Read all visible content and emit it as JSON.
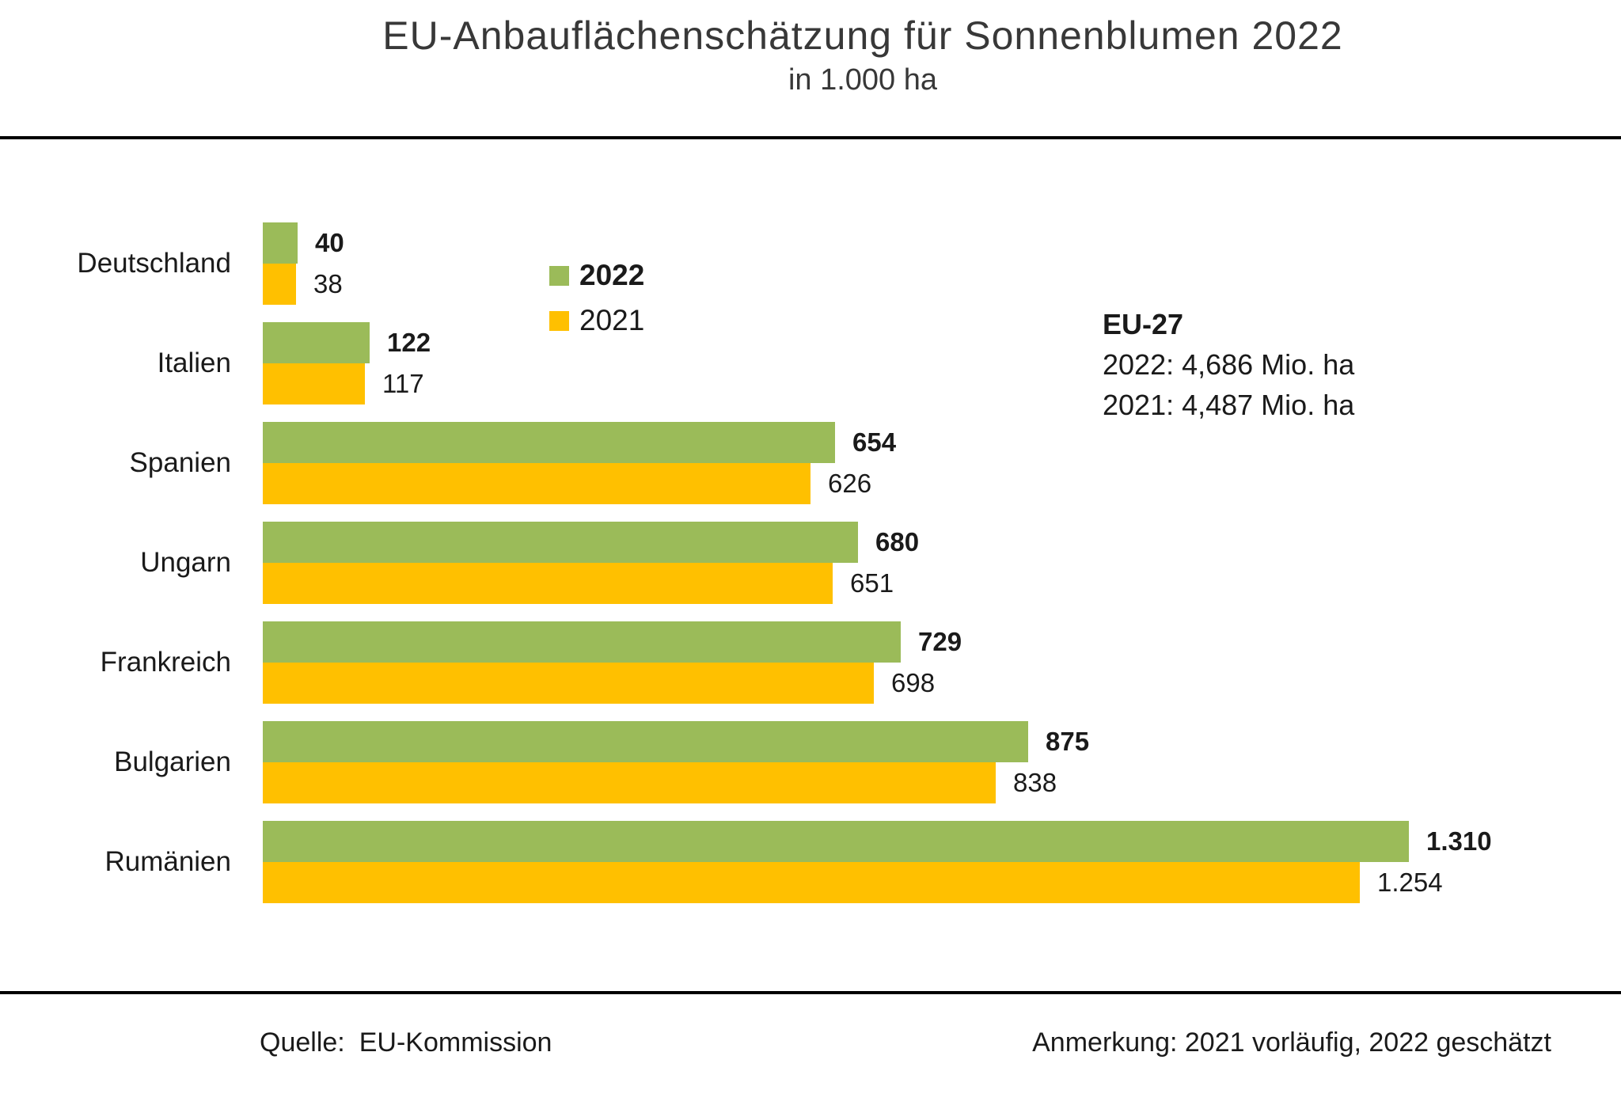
{
  "title": "EU-Anbauflächenschätzung für Sonnenblumen 2022",
  "subtitle": "in 1.000 ha",
  "legend": {
    "items": [
      {
        "label": "2022",
        "color": "#9BBB59",
        "bold": true
      },
      {
        "label": "2021",
        "color": "#FFC000",
        "bold": false
      }
    ]
  },
  "annotation": {
    "heading": "EU-27",
    "lines": [
      "2022: 4,686 Mio. ha",
      "2021: 4,487 Mio. ha"
    ]
  },
  "footer": {
    "source_label": "Quelle:",
    "source_value": "EU-Kommission",
    "note": "Anmerkung: 2021 vorläufig, 2022 geschätzt"
  },
  "colors": {
    "bar_2022": "#9BBB59",
    "bar_2021": "#FFC000",
    "text": "#1a1a1a",
    "divider": "#000000",
    "background": "#ffffff"
  },
  "chart_data": {
    "type": "bar",
    "orientation": "horizontal",
    "title": "EU-Anbauflächenschätzung für Sonnenblumen 2022",
    "subtitle": "in 1.000 ha",
    "unit": "1.000 ha",
    "categories": [
      "Deutschland",
      "Italien",
      "Spanien",
      "Ungarn",
      "Frankreich",
      "Bulgarien",
      "Rumänien"
    ],
    "series": [
      {
        "name": "2022",
        "color": "#9BBB59",
        "bold_labels": true,
        "values": [
          40,
          122,
          654,
          680,
          729,
          875,
          1310
        ],
        "values_display": [
          "40",
          "122",
          "654",
          "680",
          "729",
          "875",
          "1.310"
        ]
      },
      {
        "name": "2021",
        "color": "#FFC000",
        "bold_labels": false,
        "values": [
          38,
          117,
          626,
          651,
          698,
          838,
          1254
        ],
        "values_display": [
          "38",
          "117",
          "626",
          "651",
          "698",
          "838",
          "1.254"
        ]
      }
    ],
    "xlim": [
      0,
      1310
    ],
    "grid": false,
    "axis_ticks": "none",
    "legend_position": "upper-left-of-plot",
    "note": "Anmerkung: 2021 vorläufig, 2022 geschätzt",
    "source": "Quelle: EU-Kommission"
  }
}
